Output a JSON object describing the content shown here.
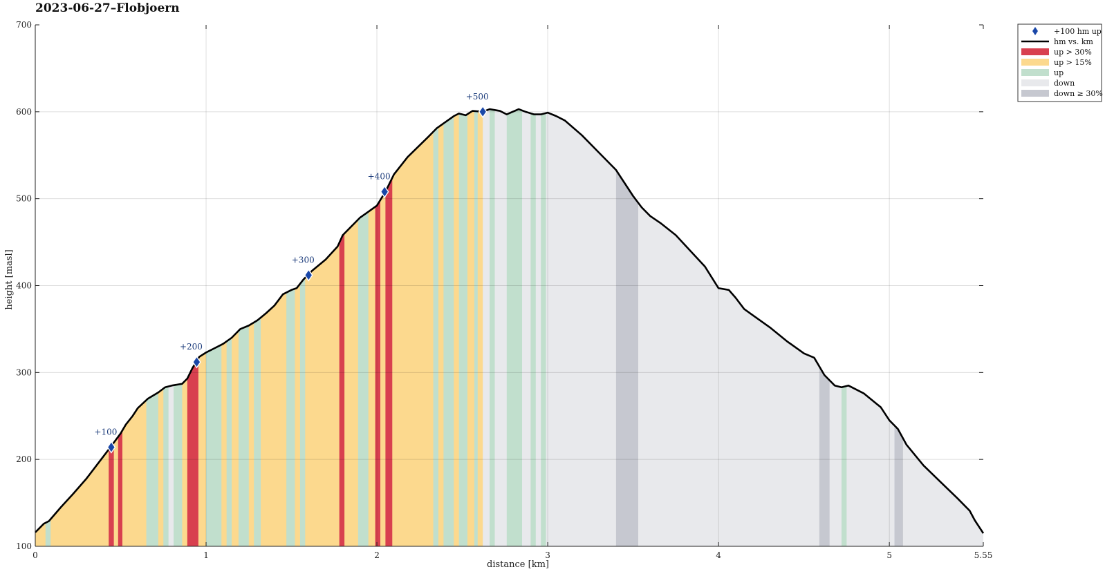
{
  "chart_data": {
    "type": "area",
    "title": "2023-06-27–Flobjoern",
    "xlabel": "distance [km]",
    "ylabel": "height [masl]",
    "xlim": [
      0,
      5.55
    ],
    "ylim": [
      100,
      700
    ],
    "xticks": [
      0,
      1,
      2,
      3,
      4,
      5,
      5.55
    ],
    "xtick_labels": [
      "0",
      "1",
      "2",
      "3",
      "4",
      "5",
      "5.55"
    ],
    "yticks": [
      100,
      200,
      300,
      400,
      500,
      600,
      700
    ],
    "ytick_labels": [
      "100",
      "200",
      "300",
      "400",
      "500",
      "600",
      "700"
    ],
    "grid": true,
    "legend_position": "outside-top-right",
    "colors": {
      "up30": "#d8404f",
      "up15": "#fcd98e",
      "up": "#c1dfcd",
      "down": "#e8e9ec",
      "down30": "#c6c8d0",
      "line": "#000000",
      "marker": "#1a47a8",
      "marker_label": "#1a3a7a"
    },
    "legend": [
      {
        "label": "+100 hm up",
        "kind": "marker"
      },
      {
        "label": "hm vs. km",
        "kind": "line"
      },
      {
        "label": "up > 30%",
        "kind": "up30"
      },
      {
        "label": "up > 15%",
        "kind": "up15"
      },
      {
        "label": "up",
        "kind": "up"
      },
      {
        "label": "down",
        "kind": "down"
      },
      {
        "label": "down ≥ 30%",
        "kind": "down30"
      }
    ],
    "series": [
      {
        "name": "hm vs. km",
        "x": [
          0,
          0.05,
          0.08,
          0.15,
          0.22,
          0.3,
          0.37,
          0.44,
          0.5,
          0.53,
          0.57,
          0.6,
          0.66,
          0.72,
          0.76,
          0.8,
          0.86,
          0.89,
          0.92,
          0.96,
          1.0,
          1.05,
          1.1,
          1.15,
          1.2,
          1.25,
          1.3,
          1.35,
          1.4,
          1.45,
          1.5,
          1.53,
          1.57,
          1.62,
          1.7,
          1.77,
          1.8,
          1.85,
          1.9,
          1.95,
          2.0,
          2.05,
          2.1,
          2.18,
          2.3,
          2.35,
          2.4,
          2.45,
          2.48,
          2.52,
          2.56,
          2.62,
          2.66,
          2.72,
          2.76,
          2.83,
          2.87,
          2.92,
          2.96,
          3.0,
          3.05,
          3.1,
          3.2,
          3.3,
          3.4,
          3.45,
          3.5,
          3.55,
          3.6,
          3.66,
          3.75,
          3.83,
          3.92,
          4.0,
          4.06,
          4.1,
          4.15,
          4.2,
          4.3,
          4.4,
          4.5,
          4.56,
          4.62,
          4.68,
          4.72,
          4.76,
          4.85,
          4.95,
          5.0,
          5.05,
          5.1,
          5.2,
          5.3,
          5.4,
          5.47,
          5.5,
          5.55
        ],
        "y": [
          116,
          126,
          129,
          145,
          160,
          178,
          196,
          214,
          230,
          240,
          250,
          259,
          270,
          277,
          283,
          285,
          287,
          293,
          305,
          318,
          323,
          328,
          333,
          340,
          350,
          354,
          360,
          368,
          377,
          390,
          395,
          397,
          407,
          417,
          430,
          445,
          458,
          468,
          478,
          485,
          492,
          508,
          528,
          548,
          571,
          581,
          588,
          595,
          598,
          596,
          601,
          600,
          603,
          601,
          597,
          603,
          600,
          597,
          597,
          599,
          595,
          590,
          573,
          553,
          533,
          518,
          503,
          490,
          480,
          472,
          458,
          441,
          422,
          397,
          395,
          386,
          373,
          366,
          352,
          336,
          322,
          317,
          297,
          285,
          283,
          285,
          276,
          260,
          245,
          235,
          217,
          193,
          174,
          155,
          141,
          130,
          115
        ]
      }
    ],
    "bands": [
      {
        "kind": "up15",
        "from": 0.0,
        "to": 0.06
      },
      {
        "kind": "up",
        "from": 0.06,
        "to": 0.09
      },
      {
        "kind": "up15",
        "from": 0.09,
        "to": 0.43
      },
      {
        "kind": "up30",
        "from": 0.43,
        "to": 0.46
      },
      {
        "kind": "up15",
        "from": 0.46,
        "to": 0.485
      },
      {
        "kind": "up30",
        "from": 0.485,
        "to": 0.51
      },
      {
        "kind": "up15",
        "from": 0.51,
        "to": 0.65
      },
      {
        "kind": "up",
        "from": 0.65,
        "to": 0.72
      },
      {
        "kind": "up15",
        "from": 0.72,
        "to": 0.75
      },
      {
        "kind": "up",
        "from": 0.75,
        "to": 0.78
      },
      {
        "kind": "down",
        "from": 0.78,
        "to": 0.81
      },
      {
        "kind": "up",
        "from": 0.81,
        "to": 0.86
      },
      {
        "kind": "up15",
        "from": 0.86,
        "to": 0.89
      },
      {
        "kind": "up30",
        "from": 0.89,
        "to": 0.955
      },
      {
        "kind": "up15",
        "from": 0.955,
        "to": 1.0
      },
      {
        "kind": "up",
        "from": 1.0,
        "to": 1.09
      },
      {
        "kind": "up15",
        "from": 1.09,
        "to": 1.12
      },
      {
        "kind": "up",
        "from": 1.12,
        "to": 1.15
      },
      {
        "kind": "up15",
        "from": 1.15,
        "to": 1.19
      },
      {
        "kind": "up",
        "from": 1.19,
        "to": 1.25
      },
      {
        "kind": "up15",
        "from": 1.25,
        "to": 1.28
      },
      {
        "kind": "up",
        "from": 1.28,
        "to": 1.32
      },
      {
        "kind": "up15",
        "from": 1.32,
        "to": 1.47
      },
      {
        "kind": "up",
        "from": 1.47,
        "to": 1.52
      },
      {
        "kind": "up15",
        "from": 1.52,
        "to": 1.55
      },
      {
        "kind": "up",
        "from": 1.55,
        "to": 1.58
      },
      {
        "kind": "up15",
        "from": 1.58,
        "to": 1.78
      },
      {
        "kind": "up30",
        "from": 1.78,
        "to": 1.81
      },
      {
        "kind": "up15",
        "from": 1.81,
        "to": 1.89
      },
      {
        "kind": "up",
        "from": 1.89,
        "to": 1.95
      },
      {
        "kind": "up15",
        "from": 1.95,
        "to": 1.99
      },
      {
        "kind": "up30",
        "from": 1.99,
        "to": 2.02
      },
      {
        "kind": "up15",
        "from": 2.02,
        "to": 2.05
      },
      {
        "kind": "up30",
        "from": 2.05,
        "to": 2.09
      },
      {
        "kind": "up15",
        "from": 2.09,
        "to": 2.33
      },
      {
        "kind": "up",
        "from": 2.33,
        "to": 2.36
      },
      {
        "kind": "up15",
        "from": 2.36,
        "to": 2.39
      },
      {
        "kind": "up",
        "from": 2.39,
        "to": 2.45
      },
      {
        "kind": "up15",
        "from": 2.45,
        "to": 2.48
      },
      {
        "kind": "up",
        "from": 2.48,
        "to": 2.53
      },
      {
        "kind": "up15",
        "from": 2.53,
        "to": 2.57
      },
      {
        "kind": "up",
        "from": 2.57,
        "to": 2.59
      },
      {
        "kind": "up15",
        "from": 2.59,
        "to": 2.62
      },
      {
        "kind": "down",
        "from": 2.62,
        "to": 2.66
      },
      {
        "kind": "up",
        "from": 2.66,
        "to": 2.69
      },
      {
        "kind": "down",
        "from": 2.69,
        "to": 2.76
      },
      {
        "kind": "up",
        "from": 2.76,
        "to": 2.85
      },
      {
        "kind": "down",
        "from": 2.85,
        "to": 2.9
      },
      {
        "kind": "up",
        "from": 2.9,
        "to": 2.93
      },
      {
        "kind": "down",
        "from": 2.93,
        "to": 2.96
      },
      {
        "kind": "up",
        "from": 2.96,
        "to": 2.99
      },
      {
        "kind": "down",
        "from": 2.99,
        "to": 3.4
      },
      {
        "kind": "down30",
        "from": 3.4,
        "to": 3.53
      },
      {
        "kind": "down",
        "from": 3.53,
        "to": 4.59
      },
      {
        "kind": "down30",
        "from": 4.59,
        "to": 4.65
      },
      {
        "kind": "down",
        "from": 4.65,
        "to": 4.72
      },
      {
        "kind": "up",
        "from": 4.72,
        "to": 4.75
      },
      {
        "kind": "down",
        "from": 4.75,
        "to": 5.03
      },
      {
        "kind": "down30",
        "from": 5.03,
        "to": 5.08
      },
      {
        "kind": "down",
        "from": 5.08,
        "to": 5.55
      }
    ],
    "markers": [
      {
        "x": 0.445,
        "y": 214,
        "label": "+100"
      },
      {
        "x": 0.945,
        "y": 312,
        "label": "+200"
      },
      {
        "x": 1.6,
        "y": 412,
        "label": "+300"
      },
      {
        "x": 2.045,
        "y": 508,
        "label": "+400"
      },
      {
        "x": 2.62,
        "y": 600,
        "label": "+500"
      }
    ]
  }
}
